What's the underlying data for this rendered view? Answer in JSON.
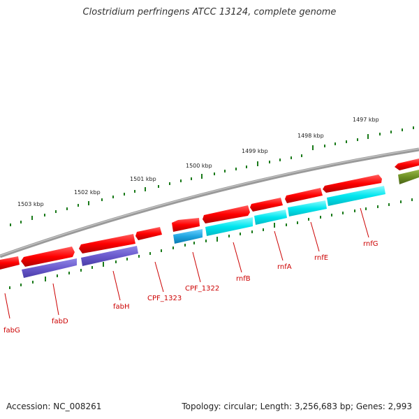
{
  "title": "Clostridium perfringens ATCC 13124, complete genome",
  "footer": {
    "accession": "Accession: NC_008261",
    "topology": "Topology: circular; Length: 3,256,683 bp; Genes: 2,993"
  },
  "ruler": [
    "1497 kbp",
    "1498 kbp",
    "1499 kbp",
    "1500 kbp",
    "1501 kbp",
    "1502 kbp",
    "1503 kbp"
  ],
  "colors": {
    "forward_cds": "#ff0000",
    "reverse_cds_dark": "#6a5acd",
    "reverse_cds_cyan": "#00e5ee",
    "reverse_cds_blue": "#1fa5e0",
    "other": "#6b8e23",
    "label": "#cc0000",
    "ticks": "#1a7a1a",
    "backbone": "#808080"
  },
  "genes": [
    "fabG",
    "fabD",
    "fabH",
    "CPF_1323",
    "CPF_1322",
    "rnfB",
    "rnfA",
    "rnfE",
    "rnfG"
  ]
}
